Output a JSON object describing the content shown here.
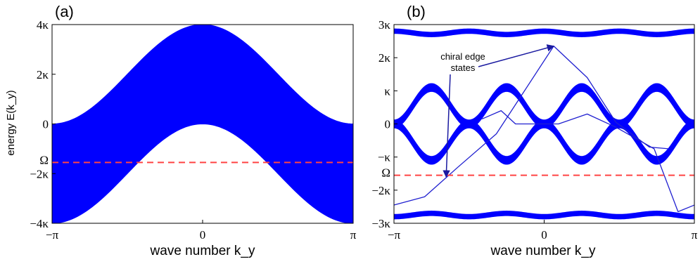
{
  "chart_data": [
    {
      "panel": "(a)",
      "type": "area",
      "xlabel": "wave number k_y",
      "ylabel": "energy E(k_y)",
      "xlim": [
        -3.14159,
        3.14159
      ],
      "ylim": [
        -4,
        4
      ],
      "x_ticks": [
        {
          "value": -3.14159,
          "label": "−π"
        },
        {
          "value": 0,
          "label": "0"
        },
        {
          "value": 3.14159,
          "label": "π"
        }
      ],
      "y_ticks": [
        {
          "value": 4,
          "label": "4κ"
        },
        {
          "value": 2,
          "label": "2κ"
        },
        {
          "value": 0,
          "label": "0"
        },
        {
          "value": -2,
          "label": "−2κ"
        },
        {
          "value": -4,
          "label": "−4κ"
        }
      ],
      "band": {
        "color": "#0000ff",
        "x": [
          -3.14159,
          -2.35619,
          -1.5708,
          -0.7854,
          0,
          0.7854,
          1.5708,
          2.35619,
          3.14159
        ],
        "upper": [
          0.0,
          0.59,
          2.0,
          3.41,
          4.0,
          3.41,
          2.0,
          0.59,
          0.0
        ],
        "lower": [
          -4.0,
          -3.41,
          -2.0,
          -0.59,
          0.0,
          -0.59,
          -2.0,
          -3.41,
          -4.0
        ]
      },
      "omega_line": {
        "label": "Ω",
        "y": -1.55,
        "color": "#ff4444",
        "style": "dashed"
      }
    },
    {
      "panel": "(b)",
      "type": "line",
      "xlabel": "wave number k_y",
      "ylabel": "",
      "xlim": [
        -3.14159,
        3.14159
      ],
      "ylim": [
        -3,
        3
      ],
      "x_ticks": [
        {
          "value": -3.14159,
          "label": "−π"
        },
        {
          "value": 0,
          "label": "0"
        },
        {
          "value": 3.14159,
          "label": "π"
        }
      ],
      "y_ticks": [
        {
          "value": 3,
          "label": "3κ"
        },
        {
          "value": 2,
          "label": "2κ"
        },
        {
          "value": 1,
          "label": "κ"
        },
        {
          "value": 0,
          "label": "0"
        },
        {
          "value": -1,
          "label": "−κ"
        },
        {
          "value": -2,
          "label": "−2κ"
        },
        {
          "value": -3,
          "label": "−3κ"
        }
      ],
      "bands": [
        {
          "name": "top",
          "center": 2.75,
          "amplitude": 0.05,
          "halfwidth": 0.07
        },
        {
          "name": "middle-upper",
          "center": 0.55,
          "amplitude": -0.55,
          "halfwidth": 0.12
        },
        {
          "name": "middle-lower",
          "center": -0.55,
          "amplitude": 0.55,
          "halfwidth": 0.12
        },
        {
          "name": "bottom",
          "center": -2.75,
          "amplitude": -0.05,
          "halfwidth": 0.07
        }
      ],
      "edge_states": [
        {
          "x": [
            -3.14159,
            -2.5,
            -1.8,
            -1.0,
            0.2,
            0.9,
            1.5,
            2.2,
            2.6
          ],
          "y": [
            -2.45,
            -2.2,
            -1.3,
            -0.3,
            2.35,
            1.4,
            0.05,
            -0.7,
            -0.75
          ]
        },
        {
          "x": [
            -1.3,
            -0.9,
            -0.6,
            0.3,
            0.9,
            1.5,
            2.3,
            2.8,
            3.14159
          ],
          "y": [
            0.15,
            0.4,
            0.0,
            0.0,
            0.3,
            -0.1,
            -0.75,
            -2.65,
            -2.45
          ]
        }
      ],
      "omega_line": {
        "label": "Ω",
        "y": -1.55,
        "color": "#ff4444",
        "style": "dashed"
      },
      "annotation": {
        "text_line1": "chiral edge",
        "text_line2": "states",
        "arrow_targets": [
          {
            "x": 0.2,
            "y": 2.35
          },
          {
            "x": -2.05,
            "y": -1.6
          }
        ]
      }
    }
  ]
}
